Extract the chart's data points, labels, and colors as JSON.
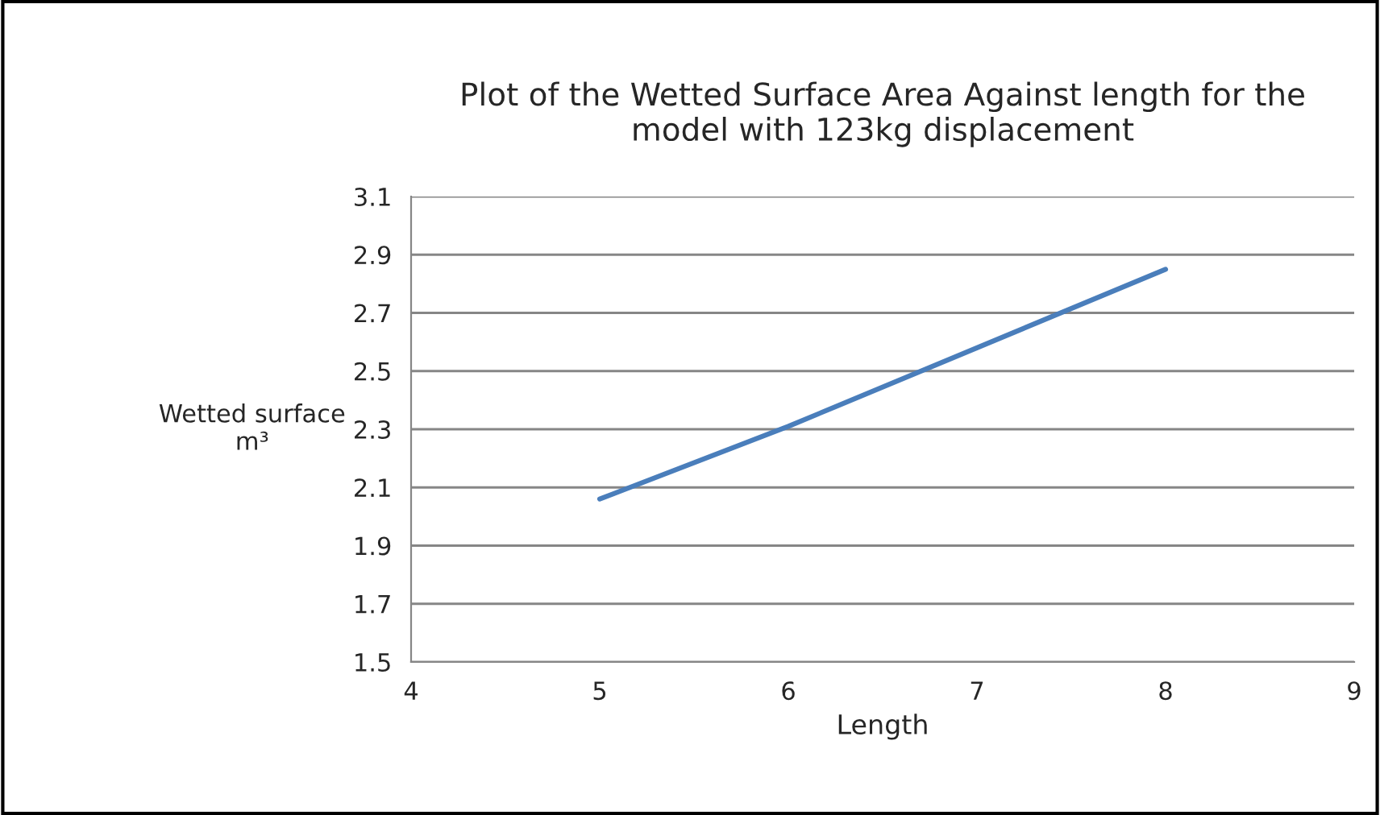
{
  "chart_data": {
    "type": "line",
    "title": "Plot of the Wetted Surface Area Against length for the\nmodel with 123kg displacement",
    "xlabel": "Length",
    "ylabel": "Wetted surface\nm³",
    "x": [
      5,
      6,
      7,
      8
    ],
    "series": [
      {
        "color": "#4a7ebb",
        "values": [
          2.06,
          2.31,
          2.58,
          2.85
        ]
      }
    ],
    "xlim": [
      4,
      9
    ],
    "xticks": [
      4,
      5,
      6,
      7,
      8,
      9
    ],
    "ylim": [
      1.5,
      3.1
    ],
    "yticks": [
      1.5,
      1.7,
      1.9,
      2.1,
      2.3,
      2.5,
      2.7,
      2.9,
      3.1
    ],
    "grid": "y",
    "legend": false,
    "marker": "none",
    "line_style": "solid"
  }
}
